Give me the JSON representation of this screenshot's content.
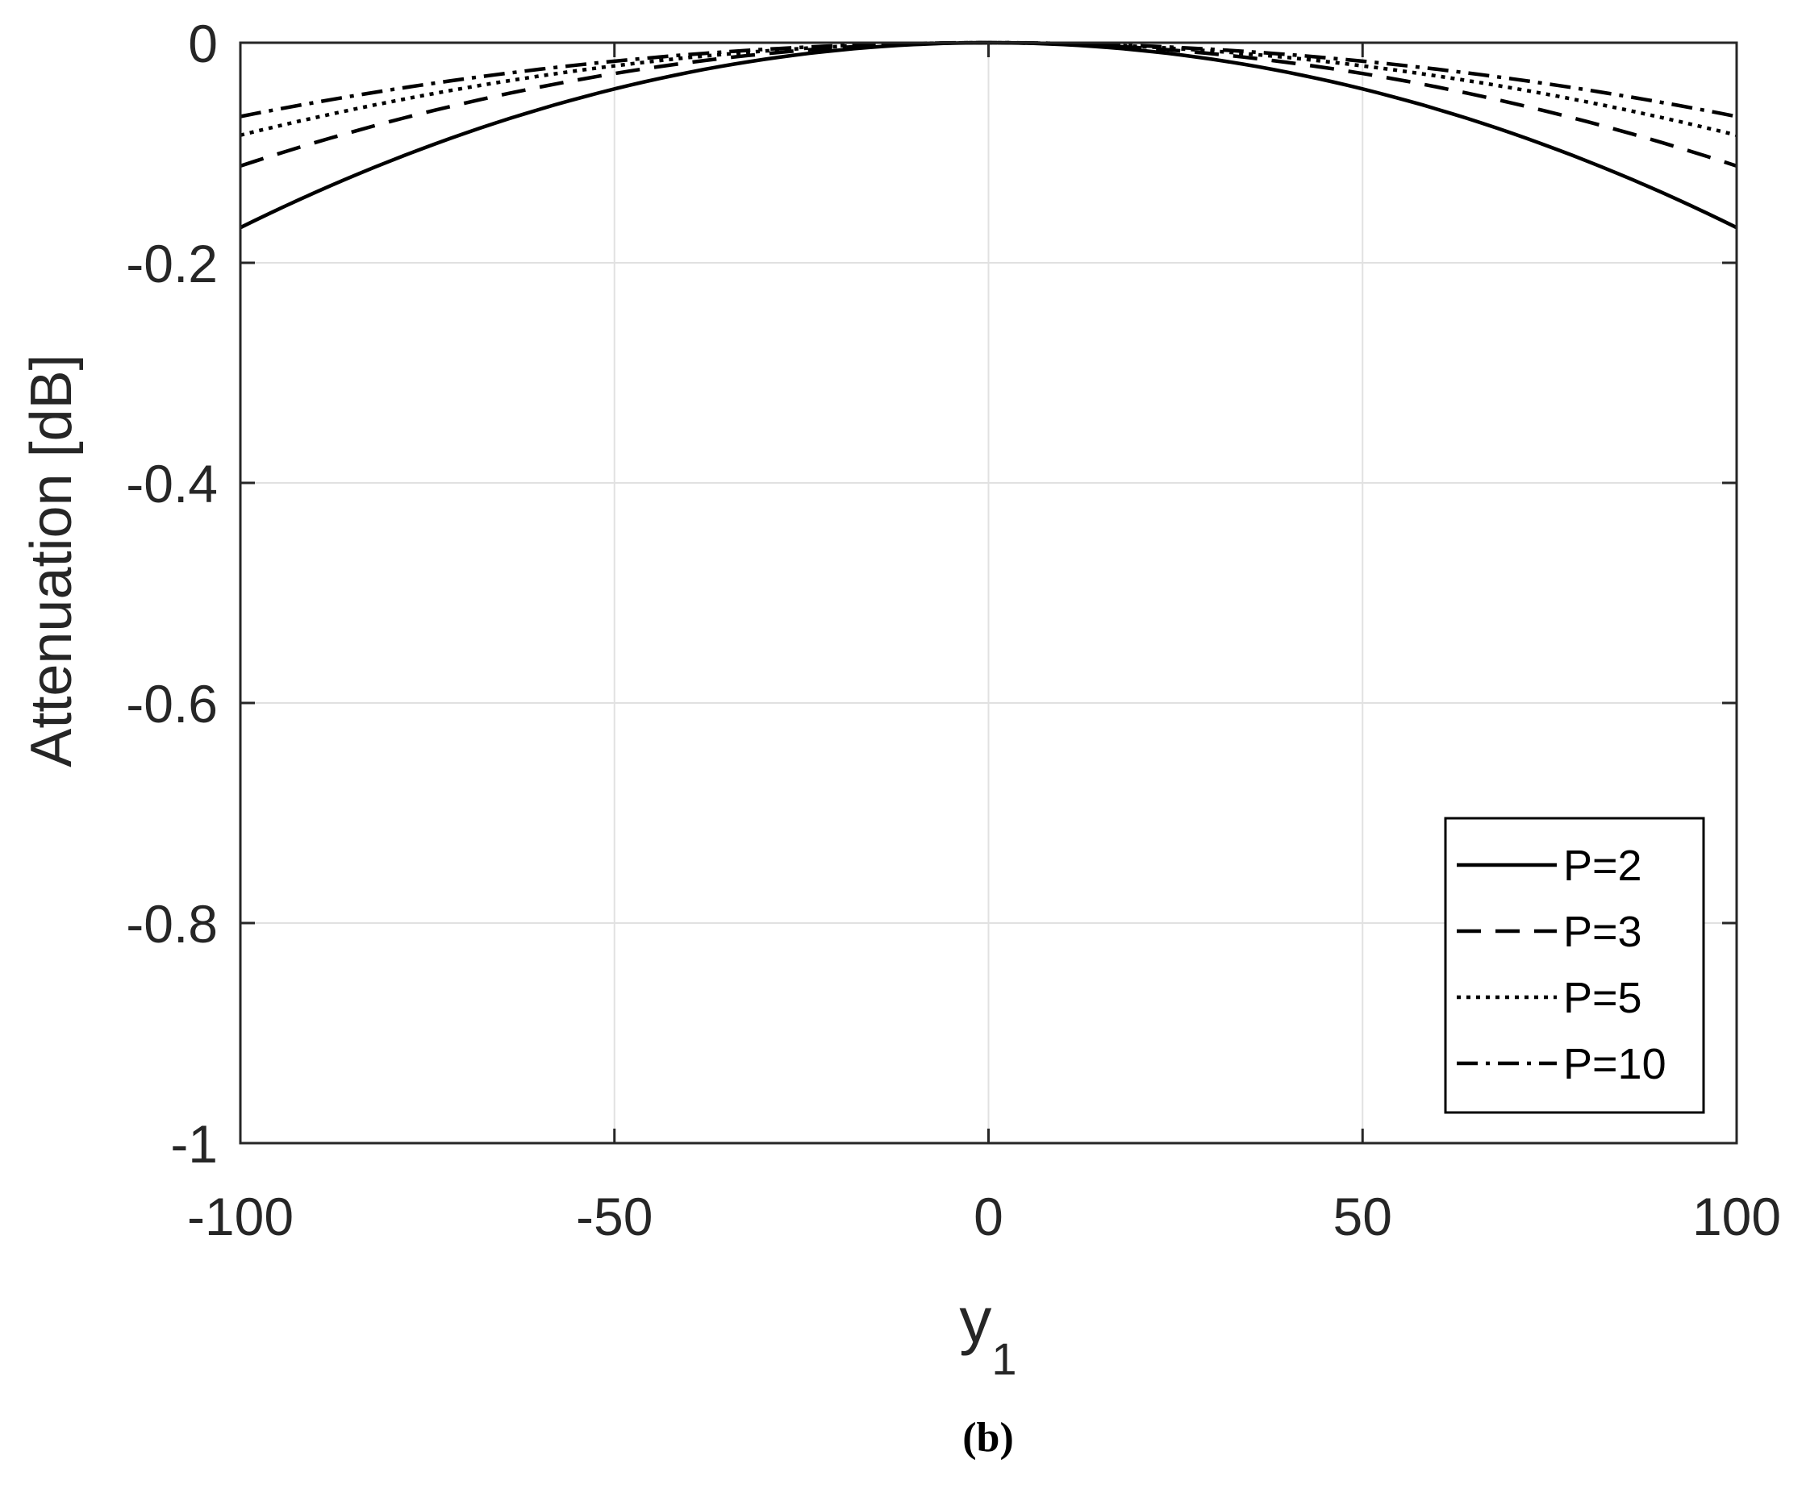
{
  "chart_data": {
    "type": "line",
    "title": "",
    "xlabel": "y",
    "xlabel_subscript": "1",
    "ylabel": "Attenuation [dB]",
    "xlim": [
      -100,
      100
    ],
    "ylim": [
      -1,
      0
    ],
    "x_ticks": [
      -100,
      -50,
      0,
      50,
      100
    ],
    "x_tick_labels": [
      "-100",
      "-50",
      "0",
      "50",
      "100"
    ],
    "y_ticks": [
      0,
      -0.2,
      -0.4,
      -0.6,
      -0.8,
      -1
    ],
    "y_tick_labels": [
      "0",
      "-0.2",
      "-0.4",
      "-0.6",
      "-0.8",
      "-1"
    ],
    "grid": true,
    "legend_position": "bottom-right",
    "series": [
      {
        "name": "P=2",
        "style": "solid",
        "color": "#000000",
        "peak_x": 0,
        "edge_y": -0.168
      },
      {
        "name": "P=3",
        "style": "dashed",
        "color": "#000000",
        "peak_x": 0,
        "edge_y": -0.112
      },
      {
        "name": "P=5",
        "style": "dotted",
        "color": "#000000",
        "peak_x": 0,
        "edge_y": -0.084
      },
      {
        "name": "P=10",
        "style": "dashdot",
        "color": "#000000",
        "peak_x": 0,
        "edge_y": -0.067
      }
    ],
    "caption": "(b)"
  }
}
